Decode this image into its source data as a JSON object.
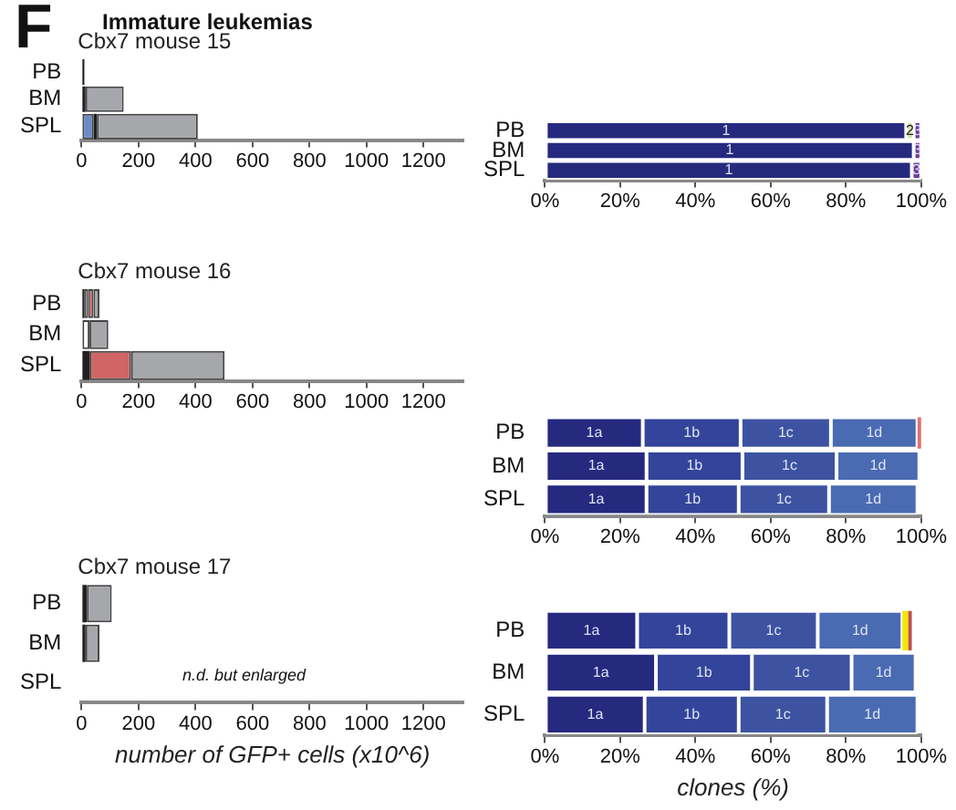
{
  "chart_data": [
    {
      "type": "bar",
      "orientation": "horizontal",
      "stacked": true,
      "title": "Cbx7 mouse 15",
      "annotations": [
        "F",
        "Immature leukemias"
      ],
      "categories": [
        "PB",
        "BM",
        "SPL"
      ],
      "legend": false,
      "grid": false,
      "xlim": [
        0,
        1340
      ],
      "xticks": [
        0,
        200,
        400,
        600,
        800,
        1000,
        1200
      ],
      "series": [
        {
          "color": "#6a8cc7",
          "values": [
            0,
            0,
            42
          ]
        },
        {
          "color": "#231f20",
          "values": [
            10,
            14,
            12
          ]
        },
        {
          "color": "#a6a7aa",
          "values": [
            0,
            134,
            354
          ]
        }
      ]
    },
    {
      "type": "bar",
      "orientation": "horizontal",
      "stacked": true,
      "categories": [
        "PB",
        "BM",
        "SPL"
      ],
      "legend": false,
      "grid": false,
      "xlim": [
        0,
        100
      ],
      "xticks": [
        {
          "value": 0,
          "label": "0%"
        },
        {
          "value": 20,
          "label": "20%"
        },
        {
          "value": 40,
          "label": "40%"
        },
        {
          "value": 60,
          "label": "60%"
        },
        {
          "value": 80,
          "label": "80%"
        },
        {
          "value": 100,
          "label": "100%"
        }
      ],
      "series": [
        {
          "name": "1",
          "color": "#262a7f",
          "values": [
            96,
            98,
            97.5
          ]
        },
        {
          "name": "2",
          "color": "#d3e4a8",
          "values": [
            2,
            null,
            null
          ]
        },
        {
          "name": "3",
          "color": "#6e3a9e",
          "values": [
            2,
            2,
            2.5
          ]
        }
      ]
    },
    {
      "type": "bar",
      "orientation": "horizontal",
      "stacked": true,
      "title": "Cbx7 mouse 16",
      "categories": [
        "PB",
        "BM",
        "SPL"
      ],
      "legend": false,
      "grid": false,
      "xlim": [
        0,
        1340
      ],
      "xticks": [
        0,
        200,
        400,
        600,
        800,
        1000,
        1200
      ],
      "series": [
        {
          "color": "#231f20",
          "values": [
            9,
            0,
            28
          ]
        },
        {
          "color": "#ffffff",
          "values": [
            14,
            28,
            0
          ]
        },
        {
          "color": "#d06566",
          "values": [
            19,
            0,
            146
          ]
        },
        {
          "color": "#a6a7aa",
          "values": [
            21,
            66,
            328
          ]
        }
      ]
    },
    {
      "type": "bar",
      "orientation": "horizontal",
      "stacked": true,
      "categories": [
        "PB",
        "BM",
        "SPL"
      ],
      "legend": false,
      "grid": false,
      "xlim": [
        0,
        100
      ],
      "xticks": [
        {
          "value": 0,
          "label": "0%"
        },
        {
          "value": 20,
          "label": "20%"
        },
        {
          "value": 40,
          "label": "40%"
        },
        {
          "value": 60,
          "label": "60%"
        },
        {
          "value": 80,
          "label": "80%"
        },
        {
          "value": 100,
          "label": "100%"
        }
      ],
      "series": [
        {
          "name": "1a",
          "color": "#262a7f",
          "values": [
            26,
            27,
            27
          ]
        },
        {
          "name": "1b",
          "color": "#33449a",
          "values": [
            26,
            25.5,
            24.5
          ]
        },
        {
          "name": "1c",
          "color": "#3d53a2",
          "values": [
            24,
            25,
            24
          ]
        },
        {
          "name": "1d",
          "color": "#4a6bb2",
          "values": [
            23,
            22,
            23.5
          ]
        },
        {
          "color": "#e07070",
          "values": [
            1,
            null,
            null
          ]
        }
      ]
    },
    {
      "type": "bar",
      "orientation": "horizontal",
      "stacked": true,
      "title": "Cbx7 mouse 17",
      "xlabel": "number of GFP+ cells (x10^6)",
      "annotations": [
        "n.d. but enlarged"
      ],
      "categories": [
        "PB",
        "BM",
        "SPL"
      ],
      "legend": false,
      "grid": false,
      "xlim": [
        0,
        1340
      ],
      "xticks": [
        0,
        200,
        400,
        600,
        800,
        1000,
        1200
      ],
      "series": [
        {
          "color": "#231f20",
          "values": [
            19,
            14,
            null
          ]
        },
        {
          "color": "#a6a7aa",
          "values": [
            87,
            49,
            null
          ]
        }
      ]
    },
    {
      "type": "bar",
      "orientation": "horizontal",
      "stacked": true,
      "xlabel": "clones (%)",
      "categories": [
        "PB",
        "BM",
        "SPL"
      ],
      "legend": false,
      "grid": false,
      "xlim": [
        0,
        100
      ],
      "xticks": [
        {
          "value": 0,
          "label": "0%"
        },
        {
          "value": 20,
          "label": "20%"
        },
        {
          "value": 40,
          "label": "40%"
        },
        {
          "value": 60,
          "label": "60%"
        },
        {
          "value": 80,
          "label": "80%"
        },
        {
          "value": 100,
          "label": "100%"
        }
      ],
      "series": [
        {
          "name": "1a",
          "color": "#262a7f",
          "values": [
            24.5,
            29.5,
            26.5
          ]
        },
        {
          "name": "1b",
          "color": "#33449a",
          "values": [
            24.5,
            25.5,
            25
          ]
        },
        {
          "name": "1c",
          "color": "#3d53a2",
          "values": [
            23.5,
            26.5,
            23.5
          ]
        },
        {
          "name": "1d",
          "color": "#4a6bb2",
          "values": [
            22.5,
            17,
            24
          ]
        },
        {
          "color": "#f5e600",
          "values": [
            1.5,
            null,
            null
          ]
        },
        {
          "color": "#c0504d",
          "values": [
            1,
            null,
            null
          ]
        }
      ]
    }
  ]
}
